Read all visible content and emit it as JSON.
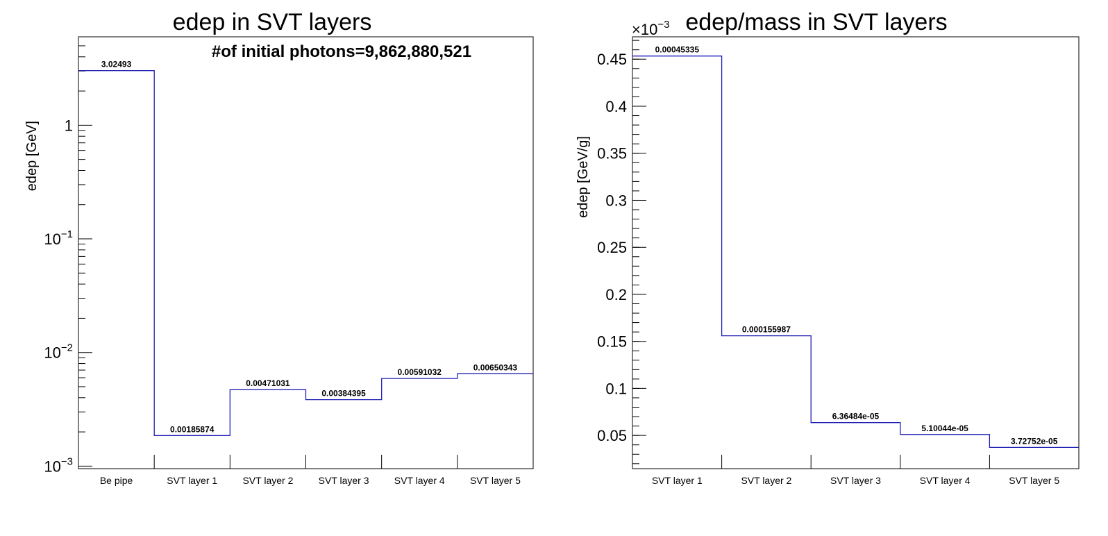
{
  "chart_data": [
    {
      "type": "bar",
      "style": "step-histogram",
      "title": "edep in SVT layers",
      "xlabel": "",
      "ylabel": "edep [GeV]",
      "yscale": "log",
      "ylim": [
        0.00095,
        6.0
      ],
      "y_ticks": [
        {
          "value": 0.001,
          "base": "10",
          "exp": "−3"
        },
        {
          "value": 0.01,
          "base": "10",
          "exp": "−2"
        },
        {
          "value": 0.1,
          "base": "10",
          "exp": "−1"
        },
        {
          "value": 1,
          "base": "1",
          "exp": ""
        }
      ],
      "categories": [
        "Be pipe",
        "SVT layer 1",
        "SVT layer 2",
        "SVT layer 3",
        "SVT layer 4",
        "SVT layer 5"
      ],
      "values": [
        3.02493,
        0.00185874,
        0.00471031,
        0.00384395,
        0.00591032,
        0.00650343
      ],
      "value_labels": [
        "3.02493",
        "0.00185874",
        "0.00471031",
        "0.00384395",
        "0.00591032",
        "0.00650343"
      ],
      "annotation": "#of initial photons=9,862,880,521",
      "line_color": "#1f1fb4",
      "grid": false,
      "legend": "none"
    },
    {
      "type": "bar",
      "style": "step-histogram",
      "title": "edep/mass in SVT layers",
      "xlabel": "",
      "ylabel": "edep [GeV/g]",
      "yscale": "linear",
      "ylim": [
        1.47e-05,
        0.0004738
      ],
      "y_multiplier": {
        "base": "×10",
        "exp": "−3"
      },
      "y_ticks": [
        {
          "value": 5e-05,
          "label": "0.05"
        },
        {
          "value": 0.0001,
          "label": "0.1"
        },
        {
          "value": 0.00015,
          "label": "0.15"
        },
        {
          "value": 0.0002,
          "label": "0.2"
        },
        {
          "value": 0.00025,
          "label": "0.25"
        },
        {
          "value": 0.0003,
          "label": "0.3"
        },
        {
          "value": 0.00035,
          "label": "0.35"
        },
        {
          "value": 0.0004,
          "label": "0.4"
        },
        {
          "value": 0.00045,
          "label": "0.45"
        }
      ],
      "categories": [
        "SVT layer 1",
        "SVT layer 2",
        "SVT layer 3",
        "SVT layer 4",
        "SVT layer 5"
      ],
      "values": [
        0.00045335,
        0.000155987,
        6.36484e-05,
        5.10044e-05,
        3.72752e-05
      ],
      "value_labels": [
        "0.00045335",
        "0.000155987",
        "6.36484e-05",
        "5.10044e-05",
        "3.72752e-05"
      ],
      "line_color": "#1f1fb4",
      "grid": false,
      "legend": "none"
    }
  ]
}
